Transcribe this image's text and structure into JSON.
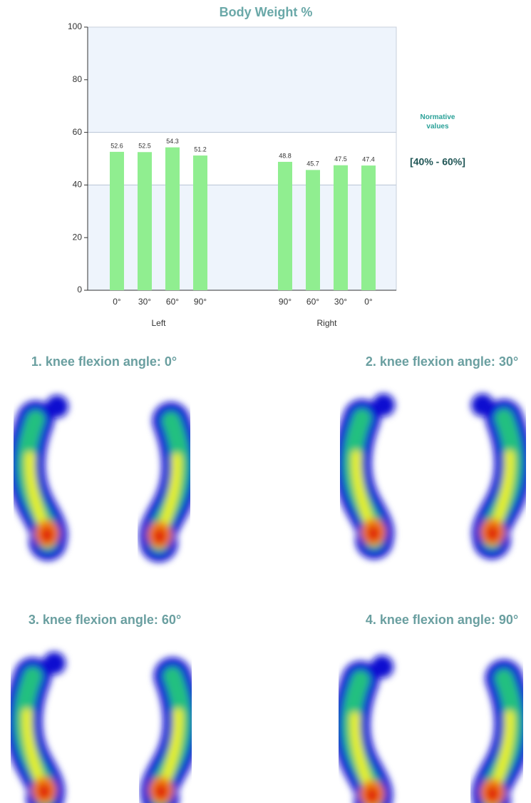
{
  "chart_data": {
    "type": "bar",
    "title": "Body Weight %",
    "groups": [
      {
        "name": "Left",
        "categories": [
          "0°",
          "30°",
          "60°",
          "90°"
        ],
        "values": [
          52.6,
          52.5,
          54.3,
          51.2
        ]
      },
      {
        "name": "Right",
        "categories": [
          "90°",
          "60°",
          "30°",
          "0°"
        ],
        "values": [
          48.8,
          45.7,
          47.5,
          47.4
        ]
      }
    ],
    "color": "#90ee90",
    "ylim": [
      0,
      100
    ],
    "yticks": [
      0,
      20,
      40,
      60,
      80,
      100
    ],
    "normative_range": [
      40,
      60
    ],
    "annotations": [
      "Normative values",
      "[40% - 60%]"
    ]
  },
  "panels": [
    {
      "title": "1. knee flexion angle: 0°"
    },
    {
      "title": "2. knee flexion angle: 30°"
    },
    {
      "title": "3. knee flexion angle: 60°"
    },
    {
      "title": "4. knee flexion angle: 90°"
    }
  ]
}
